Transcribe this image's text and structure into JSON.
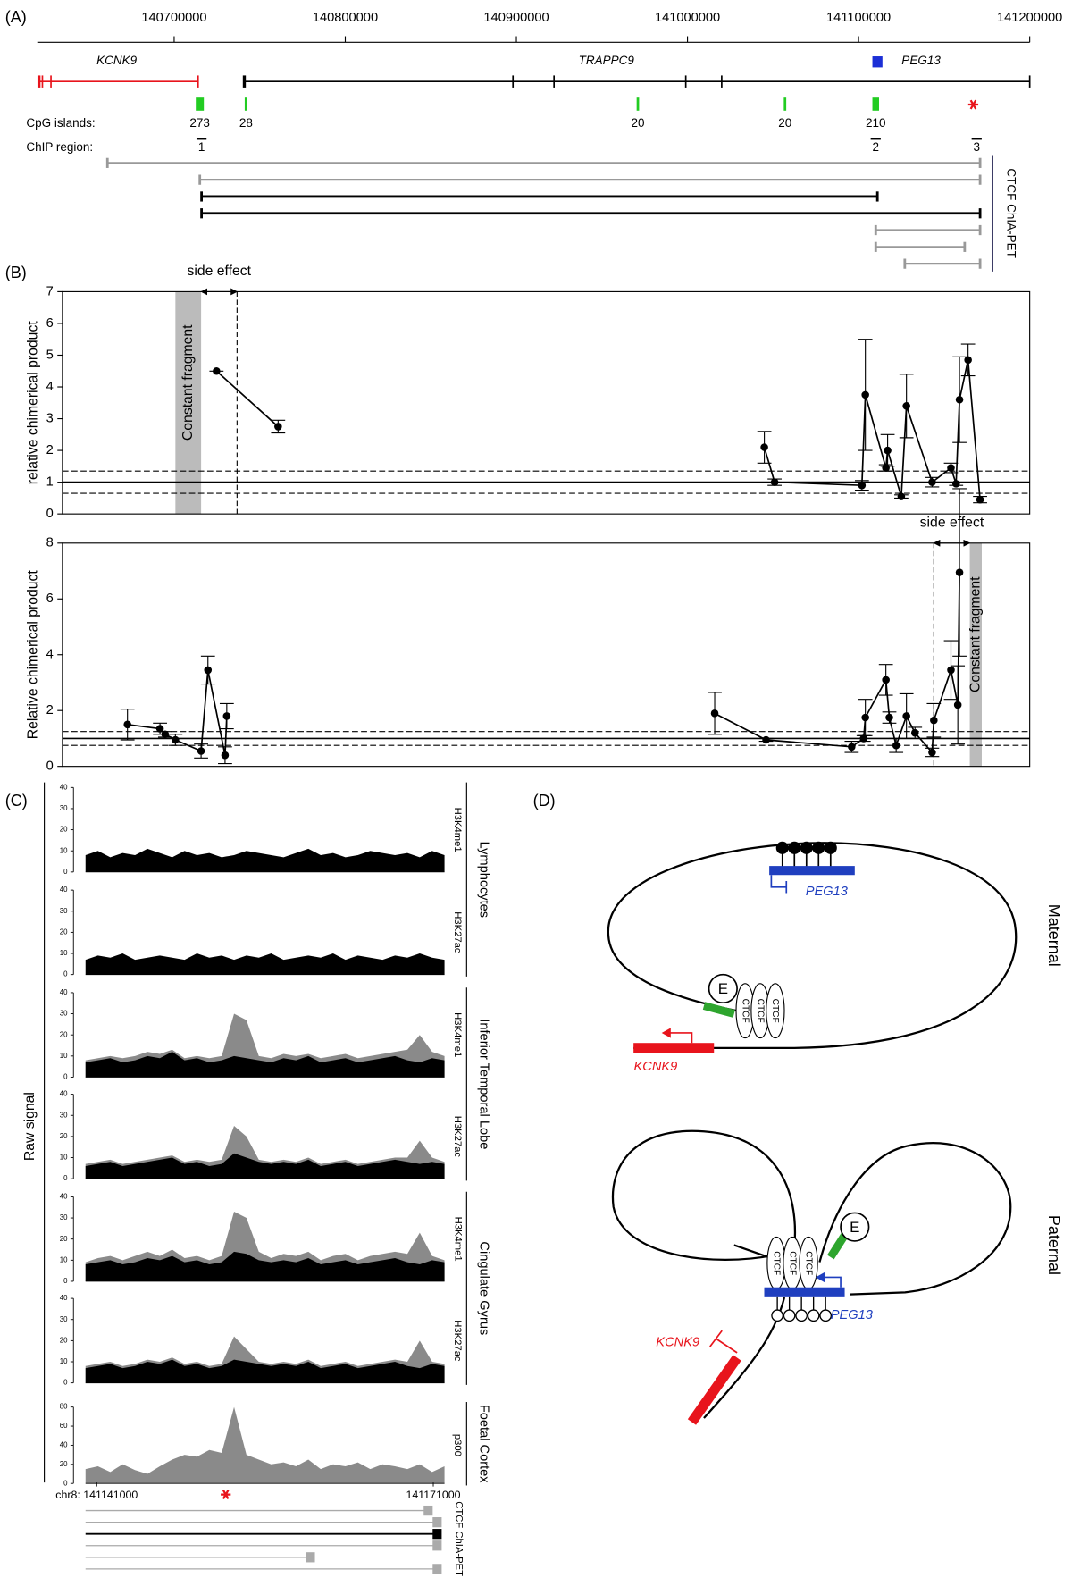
{
  "panel_labels": [
    "(A)",
    "(B)",
    "(C)",
    "(D)"
  ],
  "panel_a": {
    "xlim": [
      140620000,
      141200000
    ],
    "xticks": [
      140700000,
      140800000,
      140900000,
      141000000,
      141100000,
      141200000
    ],
    "genes": [
      {
        "name": "KCNK9",
        "start": 140621000,
        "end": 140714000,
        "exons": [
          140623000,
          140628000
        ],
        "color": "#e8141c"
      },
      {
        "name": "TRAPPC9",
        "start": 140741000,
        "end": 141200000,
        "exons": [
          140898000,
          140922000,
          140999000,
          141020000
        ],
        "color": "#000000"
      },
      {
        "name": "PEG13",
        "position": 141111000,
        "color": "#1c2fd6"
      }
    ],
    "cpg_label": "CpG islands:",
    "cpg_color": "#22cc22",
    "cpg_islands": [
      {
        "position": 140715000,
        "count": 273
      },
      {
        "position": 140742000,
        "count": 28
      },
      {
        "position": 140971000,
        "count": 20
      },
      {
        "position": 141057000,
        "count": 20
      },
      {
        "position": 141110000,
        "count": 210
      }
    ],
    "marker": {
      "position": 141167000,
      "color": "#e8141c"
    },
    "chip_label": "ChIP region:",
    "chip_regions": [
      {
        "position": 140716000,
        "label": 1
      },
      {
        "position": 141110000,
        "label": 2
      },
      {
        "position": 141169000,
        "label": 3
      }
    ],
    "chiapet_label": "CTCF ChIA-PET",
    "chiapet_links": [
      {
        "start": 140661000,
        "end": 141171000,
        "color": "#999999"
      },
      {
        "start": 140715000,
        "end": 141171000,
        "color": "#999999"
      },
      {
        "start": 140716000,
        "end": 141111000,
        "color": "#000000"
      },
      {
        "start": 140716000,
        "end": 141171000,
        "color": "#000000"
      },
      {
        "start": 141110000,
        "end": 141171000,
        "color": "#999999"
      },
      {
        "start": 141110000,
        "end": 141162000,
        "color": "#999999"
      },
      {
        "start": 141127000,
        "end": 141171000,
        "color": "#999999"
      }
    ]
  },
  "chart_data": [
    {
      "type": "line",
      "ylabel": "relative chimerical product",
      "color": "#000000",
      "xlim": [
        140635000,
        141200000
      ],
      "ylim": [
        0,
        7
      ],
      "yticks": [
        0,
        1,
        2,
        3,
        4,
        5,
        6,
        7
      ],
      "x": [
        140725000,
        140761000,
        null,
        141045000,
        141051000,
        141102000,
        141104000,
        141116000,
        141117000,
        141125000,
        141128000,
        141143000,
        141154000,
        141157000,
        141159000,
        141164000,
        141171000
      ],
      "values": [
        4.5,
        2.75,
        null,
        2.1,
        1.0,
        0.9,
        3.75,
        1.45,
        2.0,
        0.55,
        3.4,
        1.0,
        1.45,
        0.95,
        3.6,
        4.85,
        0.45
      ],
      "errors": [
        0,
        0.2,
        null,
        0.5,
        0.1,
        0.15,
        1.75,
        0.1,
        0.5,
        0.05,
        1.0,
        0.15,
        0.15,
        0.05,
        1.35,
        0.5,
        0.1
      ],
      "reference_line": 1,
      "threshold_lines": [
        0.65,
        1.35
      ],
      "constant_fragment": {
        "label": "Constant fragment",
        "start": 140701000,
        "end": 140716000,
        "color": "#bbbbbb"
      },
      "side_effect": {
        "label": "side effect",
        "boundary": 140737000
      }
    },
    {
      "type": "line",
      "ylabel": "Relative chimerical product",
      "color": "#000000",
      "xlim": [
        140635000,
        141200000
      ],
      "ylim": [
        0,
        8
      ],
      "yticks": [
        0,
        2,
        4,
        6,
        8
      ],
      "x": [
        140673000,
        140692000,
        140695000,
        140701000,
        140716000,
        140720000,
        140730000,
        140731000,
        null,
        141016000,
        141046000,
        141096000,
        141103000,
        141104000,
        141116000,
        141118000,
        141122000,
        141128000,
        141133000,
        141143000,
        141144000,
        141154000,
        141158000,
        141159000
      ],
      "values": [
        1.5,
        1.35,
        1.15,
        0.95,
        0.55,
        3.45,
        0.4,
        1.8,
        null,
        1.9,
        0.95,
        0.7,
        1.0,
        1.75,
        3.1,
        1.75,
        0.75,
        1.8,
        1.2,
        0.5,
        1.65,
        3.45,
        2.2,
        6.95
      ],
      "errors": [
        0.55,
        0.2,
        0.1,
        0.2,
        0.25,
        0.5,
        0.3,
        0.45,
        null,
        0.75,
        0.05,
        0.2,
        0.1,
        0.65,
        0.55,
        0.2,
        0.25,
        0.8,
        0.2,
        0.15,
        0.6,
        1.05,
        1.4,
        3.0
      ],
      "reference_line": 1,
      "threshold_lines": [
        0.75,
        1.25
      ],
      "constant_fragment": {
        "label": "Constant fragment",
        "start": 141165000,
        "end": 141172000,
        "color": "#bbbbbb"
      },
      "side_effect": {
        "label": "side effect",
        "boundary": 141144000
      }
    }
  ],
  "panel_c": {
    "ylabel": "Raw signal",
    "xlim": [
      141140000,
      141172000
    ],
    "xticks": [
      {
        "value": 141141000,
        "label": "chr8: 141141000"
      },
      141171000
    ],
    "marker": {
      "position": 141152500,
      "color": "#e8141c"
    },
    "overlay_color": "#8a8a8a",
    "groups": [
      {
        "label": "Lymphocytes",
        "tracks": [
          {
            "mark": "H3K4me1",
            "ylim": [
              0,
              40
            ],
            "yticks": [
              0,
              10,
              20,
              30,
              40
            ],
            "color": "#000000",
            "values": [
              8,
              10,
              7,
              9,
              8,
              11,
              9,
              7,
              10,
              8,
              9,
              7,
              8,
              10,
              9,
              8,
              7,
              9,
              11,
              8,
              9,
              7,
              8,
              10,
              9,
              8,
              9,
              7,
              10,
              8
            ]
          },
          {
            "mark": "H3K27ac",
            "ylim": [
              0,
              40
            ],
            "yticks": [
              0,
              10,
              20,
              30,
              40
            ],
            "color": "#000000",
            "values": [
              7,
              9,
              8,
              10,
              7,
              8,
              9,
              8,
              7,
              10,
              8,
              9,
              7,
              9,
              8,
              10,
              7,
              8,
              9,
              8,
              10,
              7,
              9,
              8,
              7,
              9,
              8,
              10,
              8,
              7
            ]
          }
        ]
      },
      {
        "label": "Inferior Temporal Lobe",
        "tracks": [
          {
            "mark": "H3K4me1",
            "ylim": [
              0,
              40
            ],
            "yticks": [
              0,
              10,
              20,
              30,
              40
            ],
            "color": "#000000",
            "values": [
              7,
              8,
              9,
              7,
              8,
              10,
              9,
              12,
              8,
              9,
              7,
              8,
              10,
              9,
              8,
              7,
              9,
              8,
              10,
              7,
              8,
              9,
              7,
              8,
              9,
              10,
              8,
              7,
              9,
              8
            ],
            "overlay": [
              8,
              9,
              10,
              9,
              10,
              12,
              11,
              13,
              9,
              10,
              9,
              10,
              30,
              27,
              10,
              9,
              11,
              10,
              11,
              9,
              10,
              11,
              9,
              10,
              11,
              12,
              13,
              20,
              12,
              10
            ]
          },
          {
            "mark": "H3K27ac",
            "ylim": [
              0,
              40
            ],
            "yticks": [
              0,
              10,
              20,
              30,
              40
            ],
            "color": "#000000",
            "values": [
              6,
              7,
              8,
              6,
              7,
              8,
              9,
              10,
              7,
              8,
              6,
              7,
              12,
              10,
              8,
              7,
              8,
              7,
              9,
              6,
              7,
              8,
              6,
              7,
              8,
              9,
              8,
              7,
              8,
              7
            ],
            "overlay": [
              7,
              8,
              9,
              7,
              8,
              9,
              10,
              11,
              8,
              9,
              8,
              9,
              25,
              20,
              9,
              8,
              9,
              8,
              10,
              7,
              8,
              9,
              7,
              8,
              9,
              10,
              10,
              18,
              10,
              8
            ]
          }
        ]
      },
      {
        "label": "Cingulate Gyrus",
        "tracks": [
          {
            "mark": "H3K4me1",
            "ylim": [
              0,
              40
            ],
            "yticks": [
              0,
              10,
              20,
              30,
              40
            ],
            "color": "#000000",
            "values": [
              8,
              9,
              10,
              8,
              9,
              11,
              10,
              12,
              9,
              10,
              8,
              9,
              14,
              13,
              10,
              9,
              10,
              9,
              11,
              8,
              9,
              10,
              8,
              9,
              10,
              11,
              9,
              8,
              10,
              9
            ],
            "overlay": [
              9,
              11,
              12,
              10,
              12,
              14,
              12,
              15,
              11,
              12,
              10,
              12,
              33,
              30,
              14,
              11,
              13,
              12,
              14,
              10,
              12,
              13,
              10,
              12,
              13,
              14,
              13,
              23,
              12,
              10
            ]
          },
          {
            "mark": "H3K27ac",
            "ylim": [
              0,
              40
            ],
            "yticks": [
              0,
              10,
              20,
              30,
              40
            ],
            "color": "#000000",
            "values": [
              7,
              8,
              9,
              7,
              8,
              10,
              9,
              11,
              8,
              9,
              7,
              8,
              11,
              10,
              9,
              8,
              9,
              8,
              10,
              7,
              8,
              9,
              7,
              8,
              9,
              10,
              8,
              7,
              9,
              8
            ],
            "overlay": [
              8,
              9,
              10,
              8,
              9,
              11,
              10,
              12,
              9,
              10,
              8,
              9,
              22,
              16,
              10,
              9,
              10,
              9,
              11,
              8,
              9,
              10,
              8,
              9,
              10,
              11,
              10,
              20,
              10,
              9
            ]
          }
        ]
      },
      {
        "label": "Foetal Cortex",
        "tracks": [
          {
            "mark": "p300",
            "ylim": [
              0,
              80
            ],
            "yticks": [
              0,
              20,
              40,
              60,
              80
            ],
            "color": "#8a8a8a",
            "values": [
              15,
              18,
              12,
              20,
              14,
              10,
              18,
              25,
              30,
              28,
              35,
              32,
              80,
              30,
              25,
              20,
              22,
              18,
              25,
              15,
              20,
              18,
              22,
              15,
              20,
              18,
              15,
              20,
              12,
              18
            ]
          }
        ]
      }
    ],
    "chiapet_label": "CTCF ChIA-PET",
    "chiapet_anchors": [
      {
        "position": 141170500,
        "color": "#aaaaaa"
      },
      {
        "position": 141171300,
        "color": "#aaaaaa"
      },
      {
        "position": 141171300,
        "color": "#000000"
      },
      {
        "position": 141171300,
        "color": "#aaaaaa"
      },
      {
        "position": 141160000,
        "color": "#aaaaaa"
      },
      {
        "position": 141171300,
        "color": "#aaaaaa"
      }
    ]
  },
  "panel_d": {
    "maternal": {
      "label": "Maternal",
      "peg13": "PEG13",
      "kcnk9": "KCNK9",
      "enhancer": "E",
      "ctcf": [
        "CTCF",
        "CTCF",
        "CTCF"
      ]
    },
    "paternal": {
      "label": "Paternal",
      "peg13": "PEG13",
      "kcnk9": "KCNK9",
      "enhancer": "E",
      "ctcf": [
        "CTCF",
        "CTCF",
        "CTCF"
      ]
    }
  }
}
